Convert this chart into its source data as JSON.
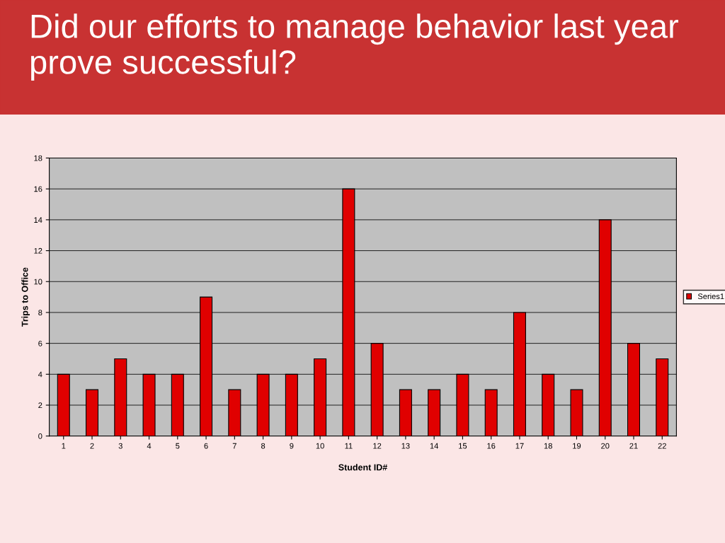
{
  "chart_data": {
    "type": "bar",
    "title": "Did our efforts to manage behavior last year prove successful?",
    "categories": [
      "1",
      "2",
      "3",
      "4",
      "5",
      "6",
      "7",
      "8",
      "9",
      "10",
      "11",
      "12",
      "13",
      "14",
      "15",
      "16",
      "17",
      "18",
      "19",
      "20",
      "21",
      "22"
    ],
    "series": [
      {
        "name": "Series1",
        "color": "#e00000",
        "values": [
          4,
          3,
          5,
          4,
          4,
          9,
          3,
          4,
          4,
          5,
          16,
          6,
          3,
          3,
          4,
          3,
          8,
          4,
          3,
          14,
          6,
          5
        ]
      }
    ],
    "xlabel": "Student ID#",
    "ylabel": "Trips to Office",
    "ylim": [
      0,
      18
    ],
    "yticks": [
      0,
      2,
      4,
      6,
      8,
      10,
      12,
      14,
      16,
      18
    ],
    "grid": "y",
    "legend": "right"
  }
}
